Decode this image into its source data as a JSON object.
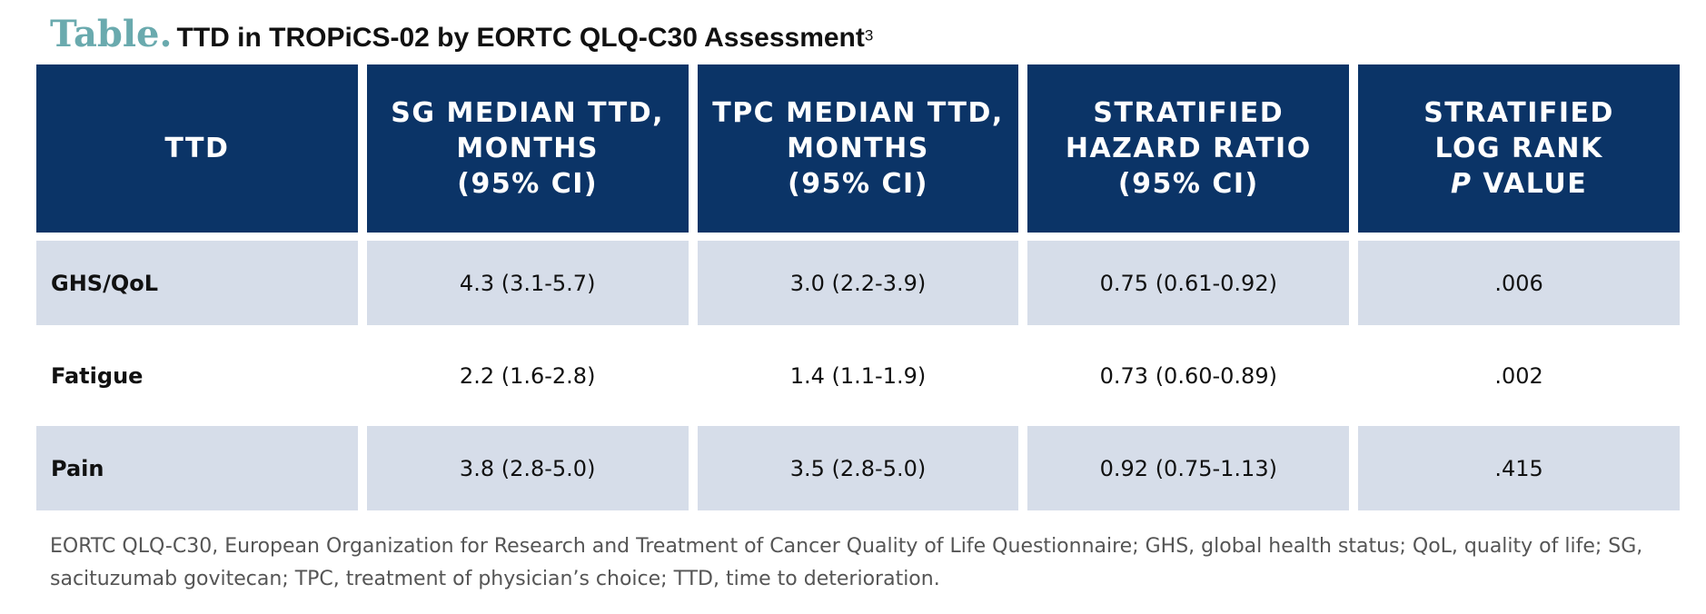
{
  "title": {
    "label": "Table.",
    "text": "TTD in TROPiCS-02 by EORTC QLQ-C30 Assessment",
    "superscript": "3"
  },
  "table": {
    "header": [
      {
        "lines": [
          "TTD"
        ]
      },
      {
        "lines": [
          "SG MEDIAN TTD,",
          "MONTHS",
          "(95% CI)"
        ]
      },
      {
        "lines": [
          "TPC MEDIAN TTD,",
          "MONTHS",
          "(95% CI)"
        ]
      },
      {
        "lines": [
          "STRATIFIED",
          "HAZARD RATIO",
          "(95% CI)"
        ]
      },
      {
        "lines": [
          "STRATIFIED",
          "LOG RANK"
        ],
        "italic": "P",
        "last": "VALUE"
      }
    ],
    "rows": [
      [
        "GHS/QoL",
        "4.3 (3.1-5.7)",
        "3.0 (2.2-3.9)",
        "0.75 (0.61-0.92)",
        ".006"
      ],
      [
        "Fatigue",
        "2.2 (1.6-2.8)",
        "1.4 (1.1-1.9)",
        "0.73 (0.60-0.89)",
        ".002"
      ],
      [
        "Pain",
        "3.8 (2.8-5.0)",
        "3.5 (2.8-5.0)",
        "0.92 (0.75-1.13)",
        ".415"
      ]
    ]
  },
  "footnote": "EORTC QLQ-C30, European Organization for Research and Treatment of Cancer Quality of Life Questionnaire; GHS, global health status; QoL, quality of life; SG, sacituzumab govitecan; TPC, treatment of physician’s choice; TTD, time to deterioration."
}
